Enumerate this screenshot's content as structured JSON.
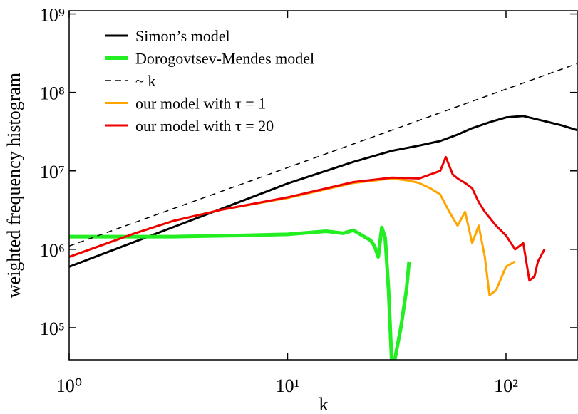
{
  "chart_data": {
    "type": "line",
    "xlabel": "k",
    "ylabel": "weighted frequency histogram",
    "log_x": true,
    "log_y": true,
    "xlim": [
      1,
      212
    ],
    "ylim": [
      39000,
      1100000000
    ],
    "xticks": [
      {
        "value": 1,
        "label": "10⁰"
      },
      {
        "value": 10,
        "label": "10¹"
      },
      {
        "value": 100,
        "label": "10²"
      }
    ],
    "yticks": [
      {
        "value": 100000,
        "label": "10⁵"
      },
      {
        "value": 1000000,
        "label": "10⁶"
      },
      {
        "value": 10000000,
        "label": "10⁷"
      },
      {
        "value": 100000000,
        "label": "10⁸"
      },
      {
        "value": 1000000000,
        "label": "10⁹"
      }
    ],
    "legend": "upper left",
    "series": [
      {
        "name": "Simon’s model",
        "color": "#000000",
        "width": 3,
        "x": [
          1,
          2,
          5,
          10,
          20,
          30,
          40,
          50,
          60,
          70,
          85,
          100,
          120,
          150,
          180,
          212
        ],
        "values": [
          600000,
          1250000,
          3300000,
          6900000,
          13000000,
          18000000,
          21000000,
          24000000,
          29000000,
          35000000,
          42000000,
          48000000,
          50000000,
          43000000,
          38000000,
          33000000
        ]
      },
      {
        "name": "Dorogovtsev-Mendes model",
        "color": "#22ee22",
        "width": 5,
        "x": [
          1,
          3,
          6,
          10,
          15,
          18,
          20,
          22,
          24,
          25,
          26,
          27,
          28,
          29,
          30,
          31,
          33,
          35,
          36
        ],
        "values": [
          1450000,
          1450000,
          1500000,
          1550000,
          1700000,
          1600000,
          1750000,
          1500000,
          1300000,
          1100000,
          800000,
          1900000,
          1400000,
          300000,
          35000,
          40000,
          100000,
          300000,
          700000
        ]
      },
      {
        "name": "~ k",
        "color": "#000000",
        "width": 1.5,
        "dashed": true,
        "x": [
          1,
          212
        ],
        "values": [
          1100000,
          233000000
        ]
      },
      {
        "name": "our model with τ = 1",
        "color": "#ffa500",
        "width": 3,
        "x": [
          1,
          2,
          3,
          5,
          10,
          20,
          30,
          36,
          40,
          45,
          50,
          55,
          60,
          65,
          70,
          75,
          80,
          84,
          90,
          100,
          110
        ],
        "values": [
          800000,
          1600000,
          2300000,
          3200000,
          4500000,
          7000000,
          8000000,
          7500000,
          7000000,
          6000000,
          5000000,
          3000000,
          2000000,
          3000000,
          1200000,
          2000000,
          800000,
          260000,
          300000,
          600000,
          700000
        ]
      },
      {
        "name": "our model with τ = 20",
        "color": "#ee0000",
        "width": 3,
        "x": [
          1,
          2,
          3,
          5,
          10,
          20,
          30,
          40,
          45,
          50,
          53,
          57,
          60,
          65,
          70,
          75,
          80,
          90,
          100,
          110,
          120,
          128,
          135,
          140,
          150
        ],
        "values": [
          800000,
          1600000,
          2300000,
          3200000,
          4600000,
          7200000,
          8200000,
          8000000,
          9000000,
          10000000,
          15000000,
          9000000,
          8000000,
          7000000,
          6000000,
          4000000,
          3000000,
          2000000,
          1500000,
          1000000,
          1200000,
          400000,
          450000,
          700000,
          1000000
        ]
      }
    ]
  }
}
